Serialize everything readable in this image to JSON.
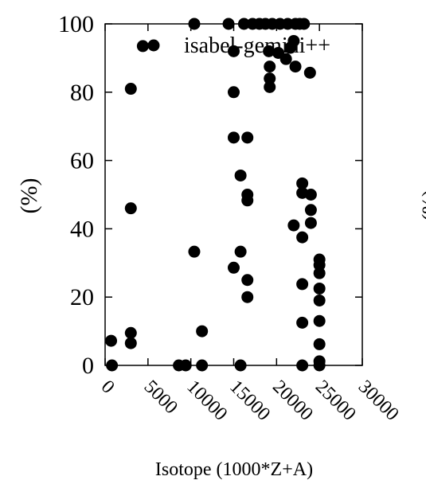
{
  "chart_data": {
    "type": "scatter",
    "xlabel": "Isotope (1000*Z+A)",
    "ylabel": "(%)",
    "clipped_neighbor_label": "(%)",
    "xlim": [
      0,
      30000
    ],
    "ylim": [
      0,
      100
    ],
    "xticks": [
      "0",
      "5000",
      "10000",
      "15000",
      "20000",
      "25000",
      "30000"
    ],
    "yticks": [
      "0",
      "20",
      "40",
      "60",
      "80",
      "100"
    ],
    "legend": {
      "position": "top-right",
      "marker": "filled-circle"
    },
    "series": [
      {
        "name": "isabel-gemini++",
        "color": "#000000",
        "points": [
          [
            800,
            0
          ],
          [
            700,
            7.2
          ],
          [
            3000,
            6.5
          ],
          [
            3000,
            9.5
          ],
          [
            3000,
            46
          ],
          [
            3000,
            81
          ],
          [
            4400,
            93.5
          ],
          [
            8600,
            0
          ],
          [
            9400,
            0
          ],
          [
            10400,
            100
          ],
          [
            10400,
            33.3
          ],
          [
            11300,
            0
          ],
          [
            11300,
            10
          ],
          [
            14400,
            100
          ],
          [
            15000,
            92
          ],
          [
            15000,
            80
          ],
          [
            15000,
            66.7
          ],
          [
            15000,
            28.6
          ],
          [
            15800,
            55.6
          ],
          [
            15800,
            33.3
          ],
          [
            15800,
            0
          ],
          [
            16200,
            100
          ],
          [
            16600,
            66.7
          ],
          [
            16600,
            50
          ],
          [
            16600,
            48.3
          ],
          [
            16600,
            25
          ],
          [
            16600,
            20
          ],
          [
            17200,
            100
          ],
          [
            18000,
            100
          ],
          [
            18700,
            100
          ],
          [
            19500,
            100
          ],
          [
            19100,
            92
          ],
          [
            19200,
            87.5
          ],
          [
            19200,
            84
          ],
          [
            19200,
            81.5
          ],
          [
            20200,
            91.5
          ],
          [
            20400,
            100
          ],
          [
            21100,
            89.7
          ],
          [
            21300,
            100
          ],
          [
            21600,
            93
          ],
          [
            22200,
            100
          ],
          [
            22000,
            95
          ],
          [
            22200,
            87.5
          ],
          [
            22700,
            100
          ],
          [
            23200,
            100
          ],
          [
            22000,
            41
          ],
          [
            23000,
            53.3
          ],
          [
            23000,
            50.5
          ],
          [
            23000,
            37.5
          ],
          [
            23000,
            23.8
          ],
          [
            23000,
            12.5
          ],
          [
            23000,
            0
          ],
          [
            23900,
            85.7
          ],
          [
            24000,
            50
          ],
          [
            24000,
            45.5
          ],
          [
            24000,
            41.7
          ],
          [
            25000,
            31
          ],
          [
            25000,
            29.4
          ],
          [
            25000,
            27
          ],
          [
            25000,
            22.5
          ],
          [
            25000,
            19
          ],
          [
            25000,
            13
          ],
          [
            25000,
            6.2
          ],
          [
            25000,
            1.2
          ],
          [
            25000,
            0
          ]
        ]
      }
    ]
  }
}
